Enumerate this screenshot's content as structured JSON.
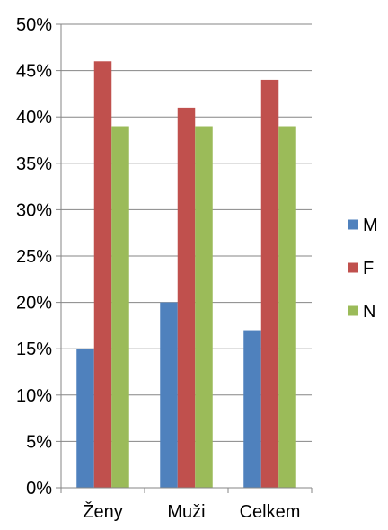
{
  "chart_data": {
    "type": "bar",
    "categories": [
      "Ženy",
      "Muži",
      "Celkem"
    ],
    "series": [
      {
        "name": "M",
        "color": "#4F81BD",
        "values": [
          15,
          20,
          17
        ]
      },
      {
        "name": "F",
        "color": "#C0504D",
        "values": [
          46,
          41,
          44
        ]
      },
      {
        "name": "N",
        "color": "#9BBB59",
        "values": [
          39,
          39,
          39
        ]
      }
    ],
    "ylim": [
      0,
      50
    ],
    "y_ticks": [
      0,
      5,
      10,
      15,
      20,
      25,
      30,
      35,
      40,
      45,
      50
    ],
    "y_tick_format": "percent",
    "grid": true,
    "legend_position": "right",
    "title": "",
    "xlabel": "",
    "ylabel": ""
  }
}
